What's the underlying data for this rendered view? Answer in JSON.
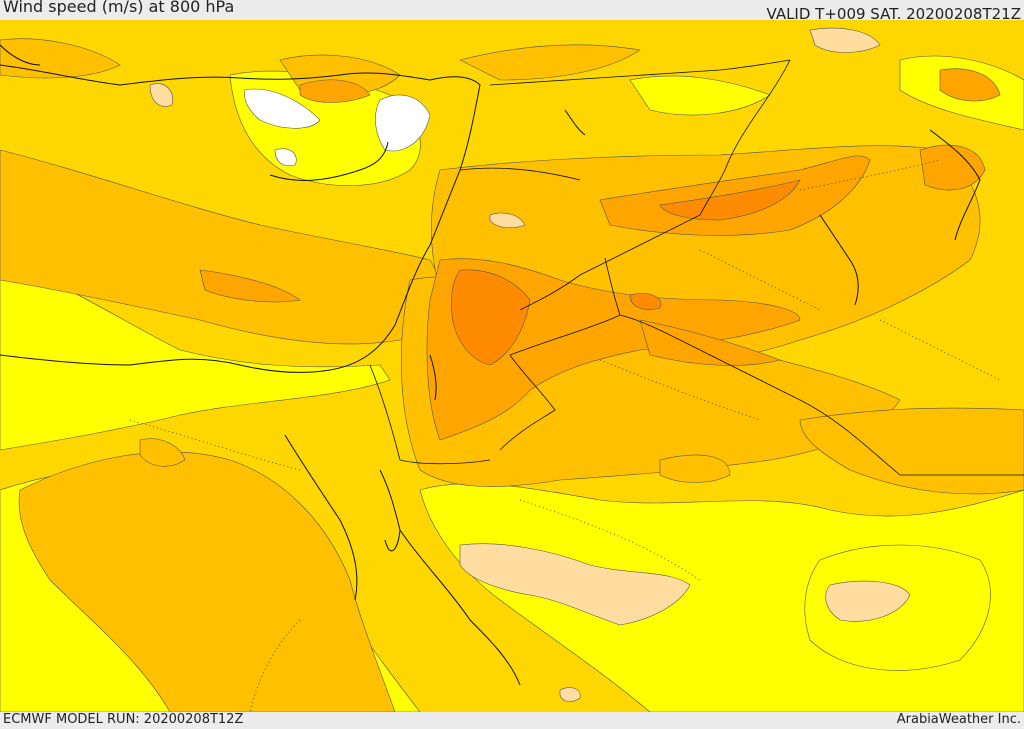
{
  "header": {
    "title": "Wind speed (m/s) at 800 hPa",
    "valid_time": "VALID T+009 SAT. 20200208T21Z"
  },
  "footer": {
    "model_run": "ECMWF MODEL RUN: 20200208T12Z",
    "credit": "ArabiaWeather Inc."
  },
  "map": {
    "variable": "wind speed",
    "units": "m/s",
    "level": "800 hPa",
    "shading_colors": {
      "calm": "#ffffff",
      "light": "#ffff00",
      "moderate": "#ffd700",
      "fresh": "#ffc000",
      "strong": "#ffa500",
      "very_strong": "#ff8c00",
      "peach": "#ffdca0"
    }
  }
}
